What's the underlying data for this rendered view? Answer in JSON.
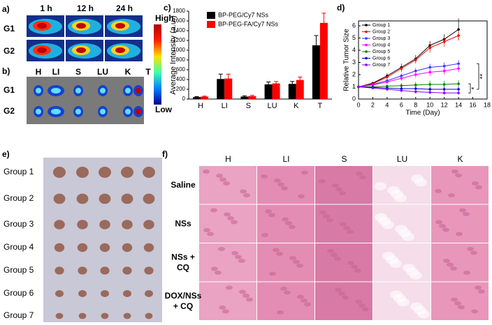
{
  "panel_labels": [
    "a)",
    "b)",
    "c)",
    "d)",
    "e)",
    "f)"
  ],
  "imaging": {
    "times": [
      "1 h",
      "12 h",
      "24 h"
    ],
    "groups": [
      "G1",
      "G2"
    ],
    "colorbar": {
      "high": "High",
      "low": "Low"
    },
    "organs": [
      "H",
      "LI",
      "S",
      "LU",
      "K",
      "T"
    ],
    "organ_groups": [
      "G1",
      "G2"
    ]
  },
  "chart_data": [
    {
      "type": "bar",
      "ylabel": "Average Intensity (a.u.)",
      "categories": [
        "H",
        "LI",
        "S",
        "LU",
        "K",
        "T"
      ],
      "series": [
        {
          "name": "BP-PEG/Cy7 NSs",
          "color": "#000000",
          "values": [
            40,
            410,
            50,
            300,
            310,
            1100
          ],
          "errors": [
            10,
            100,
            15,
            50,
            50,
            200
          ]
        },
        {
          "name": "BP-PEG-FA/Cy7 NSs",
          "color": "#ff0000",
          "values": [
            50,
            420,
            60,
            320,
            390,
            1560
          ],
          "errors": [
            10,
            90,
            15,
            40,
            60,
            200
          ]
        }
      ],
      "ylim": [
        0,
        1800
      ],
      "yticks": [
        0,
        200,
        400,
        600,
        800,
        1000,
        1200,
        1400,
        1600,
        1800
      ],
      "legend": "upper left"
    },
    {
      "type": "line",
      "xlabel": "Time (Day)",
      "ylabel": "Relative Tumor Size",
      "x": [
        0,
        2,
        4,
        6,
        8,
        10,
        12,
        14
      ],
      "series": [
        {
          "name": "Group 1",
          "color": "#000000",
          "values": [
            1,
            1.3,
            1.9,
            2.6,
            3.3,
            4.4,
            4.9,
            5.7
          ],
          "errors": [
            0,
            0.1,
            0.2,
            0.3,
            0.3,
            0.35,
            0.4,
            0.9
          ]
        },
        {
          "name": "Group 2",
          "color": "#ff0000",
          "values": [
            1,
            1.25,
            1.8,
            2.5,
            3.2,
            4.2,
            4.7,
            5.2
          ],
          "errors": [
            0,
            0.1,
            0.2,
            0.3,
            0.3,
            0.4,
            0.4,
            0.4
          ]
        },
        {
          "name": "Group 3",
          "color": "#3333ff",
          "values": [
            1,
            1.2,
            1.5,
            1.9,
            2.3,
            2.6,
            2.7,
            2.9
          ],
          "errors": [
            0,
            0.1,
            0.15,
            0.2,
            0.25,
            0.3,
            0.3,
            0.3
          ]
        },
        {
          "name": "Group 4",
          "color": "#ff00ff",
          "values": [
            1,
            1.15,
            1.4,
            1.7,
            2.0,
            2.2,
            2.3,
            2.5
          ],
          "errors": [
            0,
            0.1,
            0.15,
            0.2,
            0.25,
            0.3,
            0.3,
            0.3
          ]
        },
        {
          "name": "Group 5",
          "color": "#008000",
          "values": [
            1,
            1.0,
            1.05,
            1.1,
            1.15,
            1.2,
            1.2,
            1.25
          ],
          "errors": [
            0,
            0.1,
            0.15,
            0.2,
            0.25,
            0.3,
            0.3,
            0.3
          ]
        },
        {
          "name": "Group 6",
          "color": "#0000cc",
          "values": [
            1,
            0.95,
            0.9,
            0.85,
            0.85,
            0.8,
            0.8,
            0.8
          ],
          "errors": [
            0,
            0.1,
            0.15,
            0.2,
            0.2,
            0.2,
            0.2,
            0.2
          ]
        },
        {
          "name": "Group 7",
          "color": "#8000ff",
          "values": [
            1,
            0.9,
            0.8,
            0.7,
            0.6,
            0.55,
            0.5,
            0.5
          ],
          "errors": [
            0,
            0.1,
            0.1,
            0.15,
            0.15,
            0.15,
            0.15,
            0.15
          ]
        }
      ],
      "xlim": [
        0,
        18
      ],
      "xticks": [
        0,
        2,
        4,
        6,
        8,
        10,
        12,
        14,
        16,
        18
      ],
      "ylim": [
        0,
        6.4
      ],
      "yticks": [
        0,
        1,
        2,
        3,
        4,
        5,
        6
      ],
      "legend": "upper left",
      "annotations": [
        "**",
        "*"
      ]
    }
  ],
  "tumors": {
    "groups": [
      "Group 1",
      "Group 2",
      "Group 3",
      "Group 4",
      "Group 5",
      "Group 6",
      "Group 7"
    ]
  },
  "histology": {
    "organs": [
      "H",
      "LI",
      "S",
      "LU",
      "K"
    ],
    "treatments": [
      [
        "Saline"
      ],
      [
        "NSs"
      ],
      [
        "NSs +",
        "CQ"
      ],
      [
        "DOX/NSs",
        "+ CQ"
      ]
    ]
  }
}
